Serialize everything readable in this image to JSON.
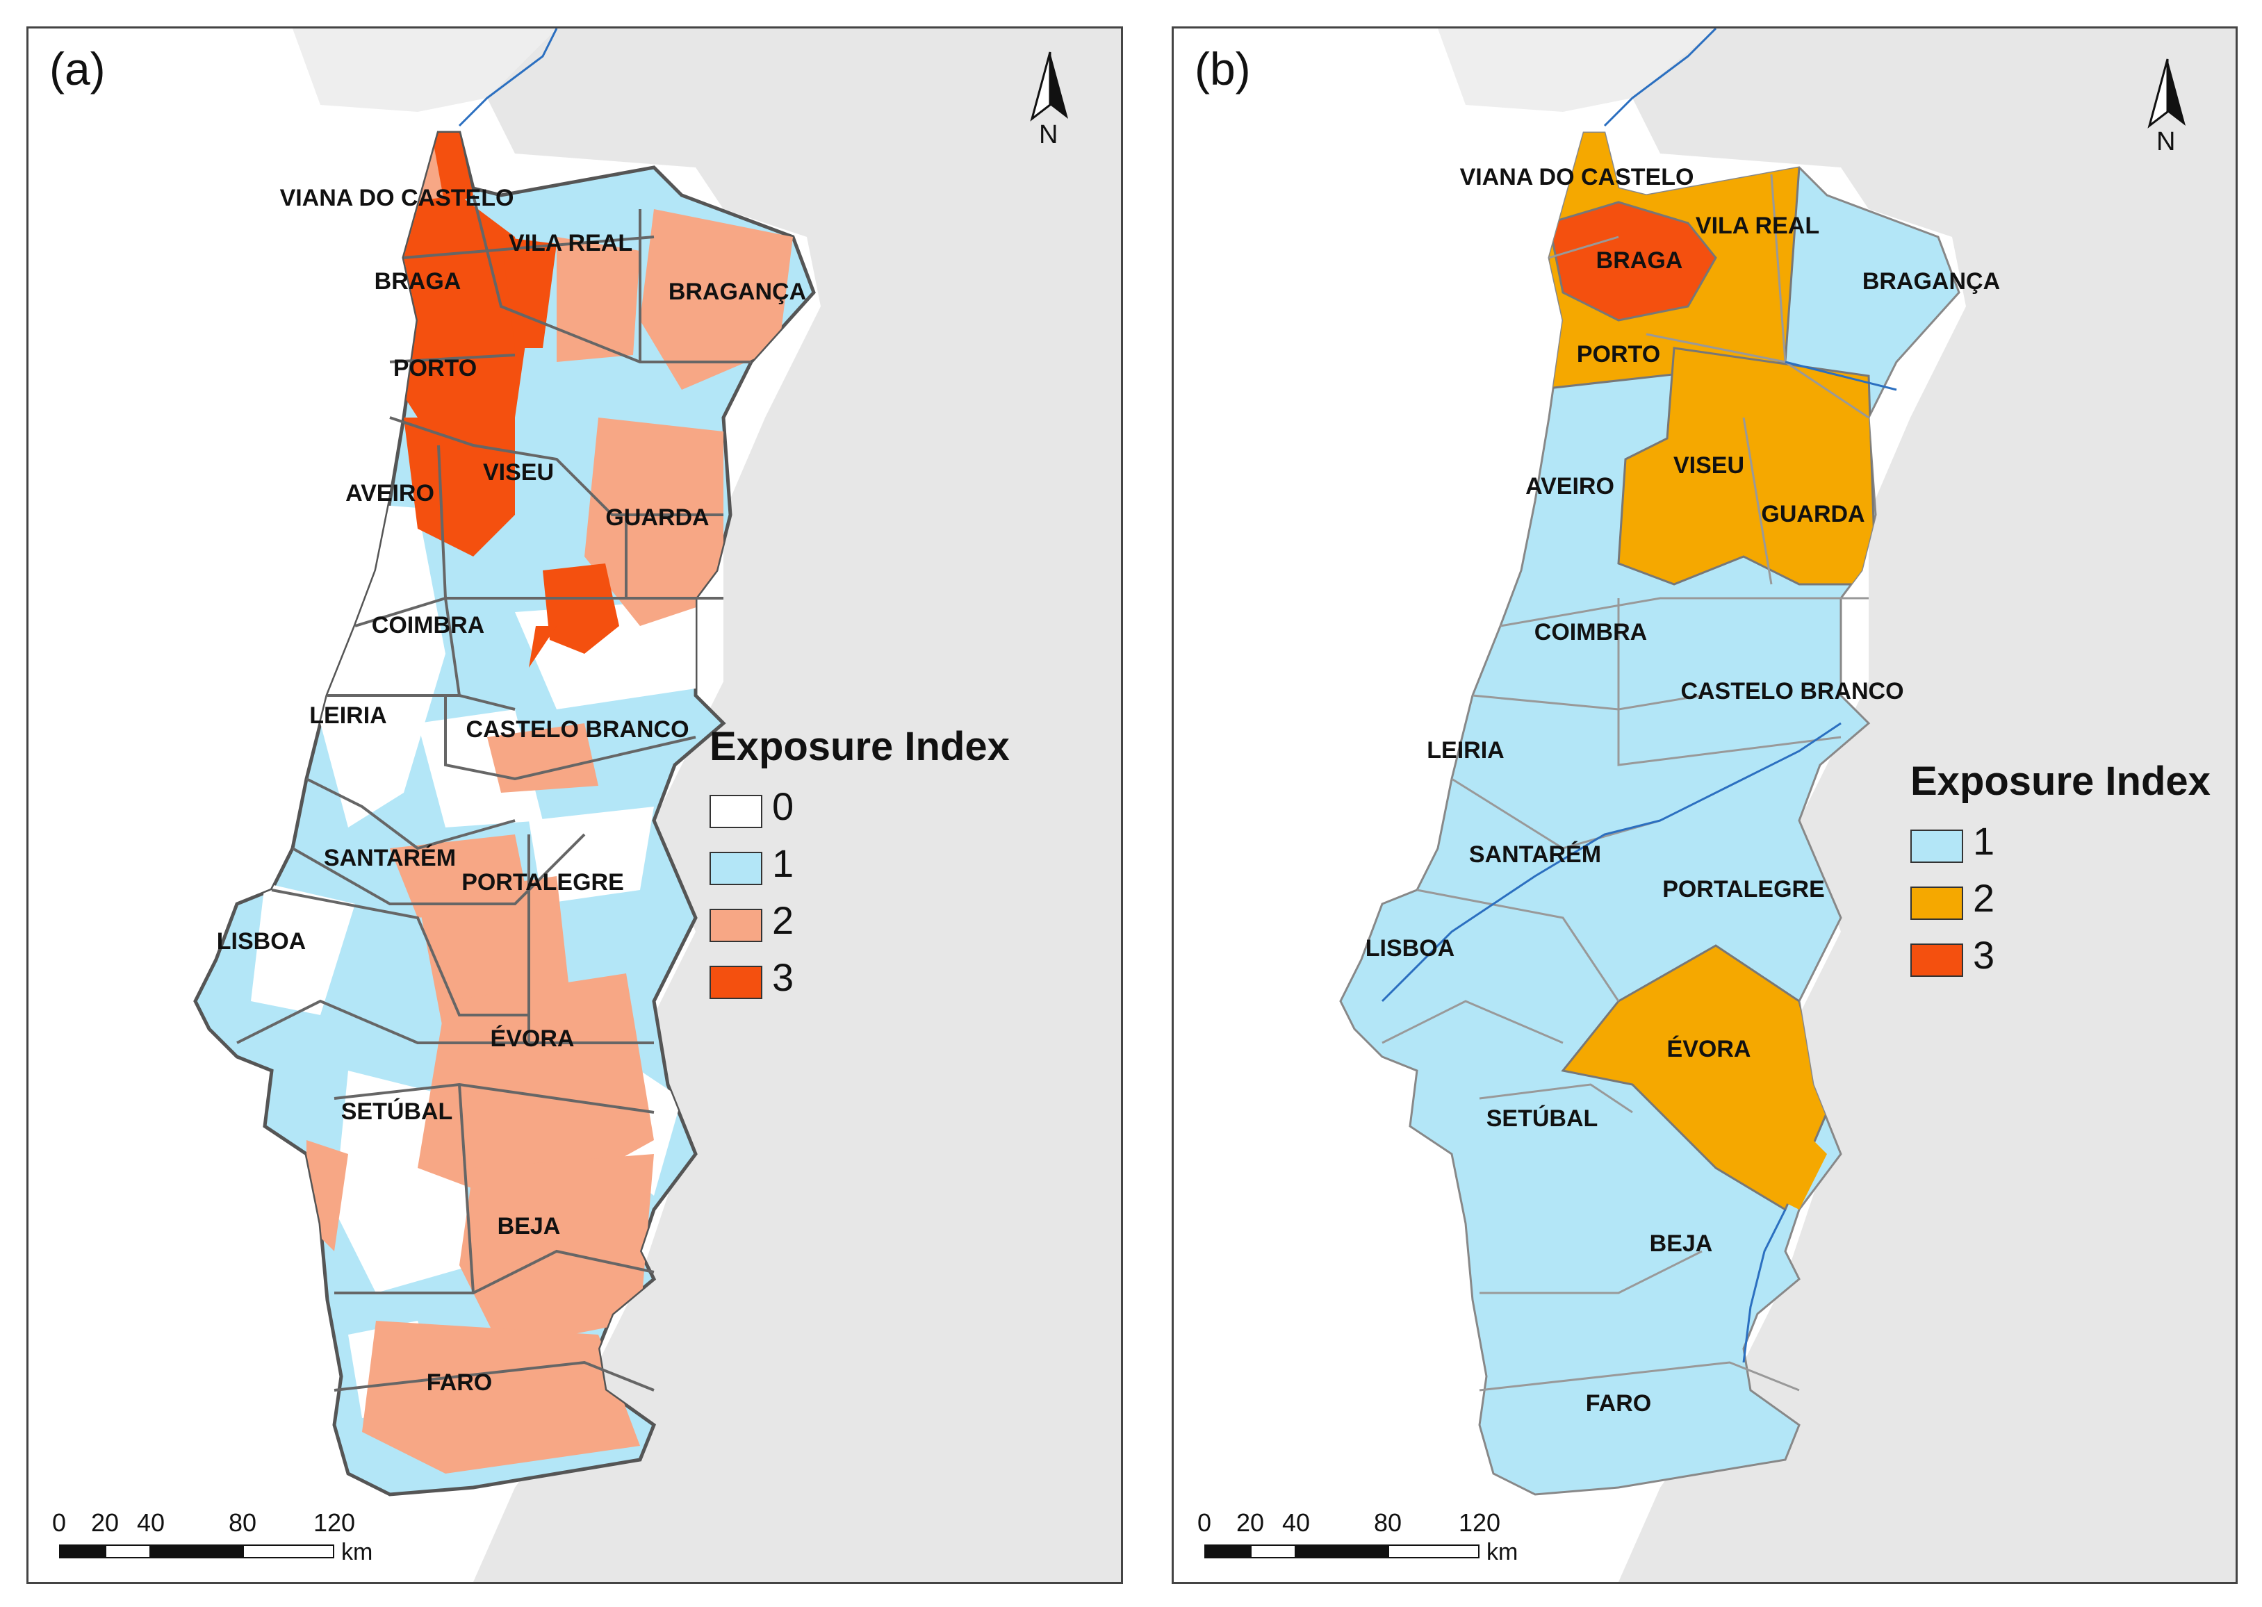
{
  "panels": [
    {
      "id": "a",
      "label": "(a)",
      "legend": {
        "title": "Exposure Index",
        "items": [
          {
            "value": "0",
            "color": "#ffffff"
          },
          {
            "value": "1",
            "color": "#b3e6f7"
          },
          {
            "value": "2",
            "color": "#f7a785"
          },
          {
            "value": "3",
            "color": "#f4500f"
          }
        ]
      },
      "districts": [
        "VIANA DO CASTELO",
        "BRAGA",
        "VILA REAL",
        "BRAGANÇA",
        "PORTO",
        "AVEIRO",
        "VISEU",
        "GUARDA",
        "COIMBRA",
        "LEIRIA",
        "CASTELO BRANCO",
        "SANTARÉM",
        "PORTALEGRE",
        "LISBOA",
        "ÉVORA",
        "SETÚBAL",
        "BEJA",
        "FARO"
      ],
      "north_label": "N",
      "scale": {
        "ticks": [
          "0",
          "20",
          "40",
          "80",
          "120"
        ],
        "unit": "km"
      }
    },
    {
      "id": "b",
      "label": "(b)",
      "legend": {
        "title": "Exposure Index",
        "items": [
          {
            "value": "1",
            "color": "#b3e6f7"
          },
          {
            "value": "2",
            "color": "#f5a800"
          },
          {
            "value": "3",
            "color": "#f4500f"
          }
        ]
      },
      "districts": [
        "VIANA DO CASTELO",
        "BRAGA",
        "VILA REAL",
        "BRAGANÇA",
        "PORTO",
        "AVEIRO",
        "VISEU",
        "GUARDA",
        "COIMBRA",
        "CASTELO BRANCO",
        "LEIRIA",
        "SANTARÉM",
        "PORTALEGRE",
        "LISBOA",
        "ÉVORA",
        "SETÚBAL",
        "BEJA",
        "FARO"
      ],
      "district_index": {
        "VIANA DO CASTELO": 2,
        "BRAGA": 3,
        "VILA REAL": 2,
        "BRAGANÇA": 1,
        "PORTO": 2,
        "AVEIRO": 1,
        "VISEU": 2,
        "GUARDA": 2,
        "COIMBRA": 1,
        "CASTELO BRANCO": 1,
        "LEIRIA": 1,
        "SANTARÉM": 1,
        "PORTALEGRE": 1,
        "LISBOA": 1,
        "ÉVORA": 2,
        "SETÚBAL": 1,
        "BEJA": 1,
        "FARO": 1
      },
      "north_label": "N",
      "scale": {
        "ticks": [
          "0",
          "20",
          "40",
          "80",
          "120"
        ],
        "unit": "km"
      }
    }
  ]
}
